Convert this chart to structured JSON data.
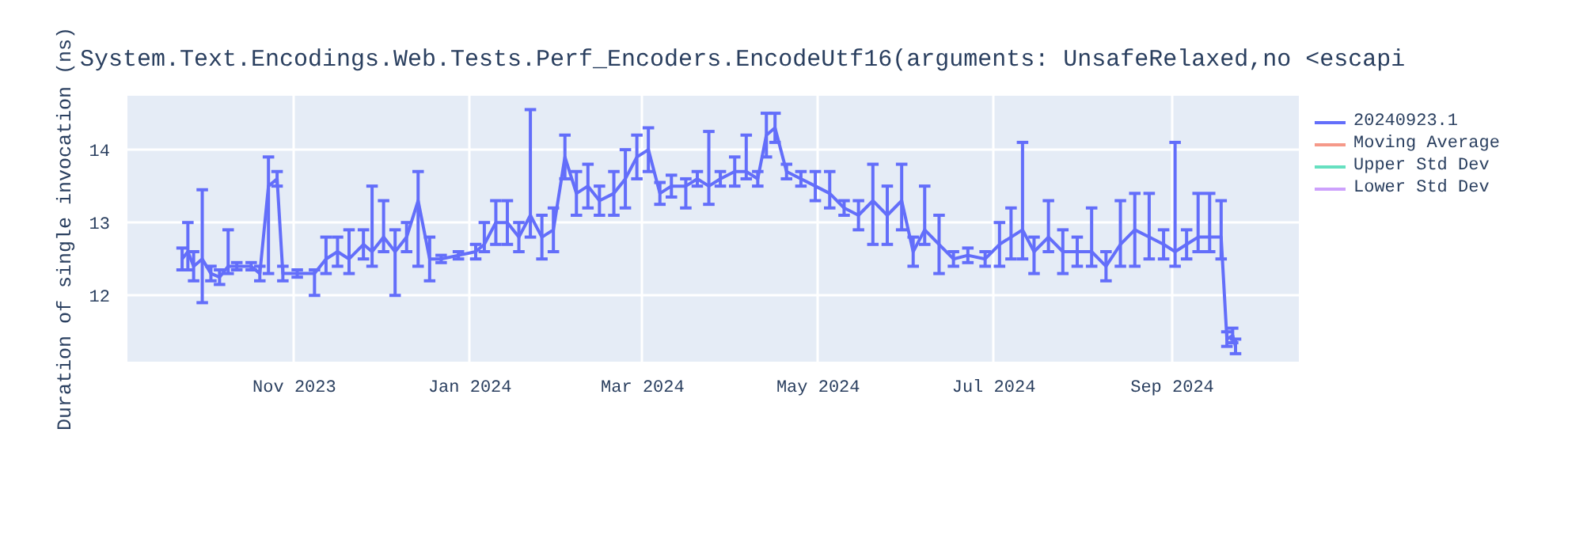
{
  "chart_data": {
    "type": "line",
    "title": "System.Text.Encodings.Web.Tests.Perf_Encoders.EncodeUtf16(arguments: UnsafeRelaxed,no <escapi",
    "ylabel": "Duration of single invocation (ns)",
    "x": [
      "2023-09-23",
      "2023-09-25",
      "2023-09-27",
      "2023-09-30",
      "2023-10-03",
      "2023-10-06",
      "2023-10-09",
      "2023-10-12",
      "2023-10-17",
      "2023-10-20",
      "2023-10-23",
      "2023-10-26",
      "2023-10-28",
      "2023-11-02",
      "2023-11-08",
      "2023-11-12",
      "2023-11-16",
      "2023-11-20",
      "2023-11-25",
      "2023-11-28",
      "2023-12-02",
      "2023-12-06",
      "2023-12-10",
      "2023-12-14",
      "2023-12-18",
      "2023-12-22",
      "2023-12-28",
      "2024-01-03",
      "2024-01-06",
      "2024-01-10",
      "2024-01-14",
      "2024-01-18",
      "2024-01-22",
      "2024-01-26",
      "2024-01-30",
      "2024-02-03",
      "2024-02-07",
      "2024-02-11",
      "2024-02-15",
      "2024-02-20",
      "2024-02-24",
      "2024-02-28",
      "2024-03-03",
      "2024-03-07",
      "2024-03-11",
      "2024-03-16",
      "2024-03-20",
      "2024-03-24",
      "2024-03-28",
      "2024-04-02",
      "2024-04-06",
      "2024-04-10",
      "2024-04-13",
      "2024-04-16",
      "2024-04-20",
      "2024-04-25",
      "2024-04-30",
      "2024-05-05",
      "2024-05-10",
      "2024-05-15",
      "2024-05-20",
      "2024-05-25",
      "2024-05-30",
      "2024-06-03",
      "2024-06-07",
      "2024-06-12",
      "2024-06-17",
      "2024-06-22",
      "2024-06-28",
      "2024-07-03",
      "2024-07-07",
      "2024-07-11",
      "2024-07-15",
      "2024-07-20",
      "2024-07-25",
      "2024-07-30",
      "2024-08-04",
      "2024-08-09",
      "2024-08-14",
      "2024-08-19",
      "2024-08-24",
      "2024-08-29",
      "2024-09-02",
      "2024-09-06",
      "2024-09-10",
      "2024-09-14",
      "2024-09-18",
      "2024-09-20",
      "2024-09-22",
      "2024-09-23"
    ],
    "series": [
      {
        "name": "20240923.1",
        "color": "#636efa",
        "values": [
          12.5,
          12.6,
          12.4,
          12.5,
          12.3,
          12.25,
          12.4,
          12.4,
          12.4,
          12.3,
          13.5,
          13.6,
          12.3,
          12.3,
          12.3,
          12.5,
          12.6,
          12.5,
          12.7,
          12.6,
          12.8,
          12.6,
          12.8,
          13.3,
          12.5,
          12.5,
          12.55,
          12.6,
          12.7,
          13.0,
          13.0,
          12.8,
          13.1,
          12.8,
          12.9,
          13.9,
          13.4,
          13.5,
          13.3,
          13.4,
          13.6,
          13.9,
          14.0,
          13.4,
          13.5,
          13.5,
          13.6,
          13.5,
          13.6,
          13.7,
          13.7,
          13.6,
          14.2,
          14.3,
          13.7,
          13.6,
          13.5,
          13.4,
          13.2,
          13.1,
          13.3,
          13.1,
          13.3,
          12.6,
          12.9,
          12.7,
          12.5,
          12.55,
          12.5,
          12.7,
          12.8,
          12.9,
          12.6,
          12.8,
          12.6,
          12.6,
          12.6,
          12.4,
          12.7,
          12.9,
          12.8,
          12.7,
          12.6,
          12.7,
          12.8,
          12.8,
          12.8,
          11.4,
          11.45,
          11.3
        ],
        "errors": [
          0.15,
          [
            12.35,
            13.0
          ],
          0.2,
          [
            11.9,
            13.45
          ],
          0.1,
          0.1,
          [
            12.3,
            12.9
          ],
          0.05,
          0.05,
          0.1,
          [
            12.3,
            13.9
          ],
          0.1,
          0.1,
          0.05,
          [
            12.0,
            12.35
          ],
          [
            12.3,
            12.8
          ],
          0.2,
          [
            12.3,
            12.9
          ],
          0.2,
          [
            12.4,
            13.5
          ],
          [
            12.6,
            13.3
          ],
          [
            12.0,
            12.9
          ],
          0.2,
          [
            12.4,
            13.7
          ],
          0.3,
          0.05,
          0.05,
          0.1,
          [
            12.6,
            13.0
          ],
          0.3,
          0.3,
          0.2,
          [
            12.8,
            14.55
          ],
          0.3,
          0.3,
          0.3,
          0.3,
          0.3,
          0.2,
          0.3,
          0.4,
          0.3,
          0.3,
          0.15,
          0.15,
          [
            13.2,
            13.6
          ],
          0.1,
          [
            13.25,
            14.25
          ],
          0.1,
          0.2,
          [
            13.6,
            14.2
          ],
          0.1,
          0.3,
          0.2,
          0.1,
          0.1,
          0.2,
          [
            13.2,
            13.7
          ],
          0.1,
          0.2,
          [
            12.7,
            13.8
          ],
          0.4,
          [
            12.9,
            13.8
          ],
          0.2,
          [
            12.7,
            13.5
          ],
          0.4,
          0.1,
          0.1,
          0.1,
          0.3,
          [
            12.5,
            13.2
          ],
          [
            12.5,
            14.1
          ],
          [
            12.3,
            12.8
          ],
          [
            12.6,
            13.3
          ],
          0.3,
          0.2,
          [
            12.4,
            13.2
          ],
          0.2,
          [
            12.4,
            13.3
          ],
          0.5,
          [
            12.5,
            13.4
          ],
          0.2,
          [
            12.4,
            14.1
          ],
          0.2,
          [
            12.6,
            13.4
          ],
          [
            12.6,
            13.4
          ],
          [
            12.5,
            13.3
          ],
          0.1,
          0.1,
          0.1
        ]
      },
      {
        "name": "Moving Average",
        "color": "#ef553b",
        "values": [
          null,
          null,
          null,
          null,
          null,
          null,
          null,
          null,
          null,
          null,
          null,
          null,
          null,
          null,
          null,
          null,
          null,
          null,
          null,
          null,
          null,
          null,
          null,
          null,
          null,
          null,
          null,
          null,
          null,
          null,
          null,
          null,
          null,
          null,
          null,
          null,
          null,
          null,
          null,
          null,
          null,
          null,
          null,
          null,
          null,
          null,
          null,
          null,
          null,
          null,
          null,
          null,
          null,
          null,
          null,
          null,
          null,
          null,
          null,
          null,
          null,
          null,
          null,
          null,
          null,
          null,
          null,
          null,
          null,
          null,
          null,
          null,
          null,
          null,
          null,
          null,
          null,
          null,
          null,
          null,
          null,
          null,
          null,
          null,
          null,
          null,
          null,
          null,
          null,
          null
        ]
      },
      {
        "name": "Upper Std Dev",
        "color": "#00cc96",
        "values": [
          null,
          null,
          null,
          null,
          null,
          null,
          null,
          null,
          null,
          null,
          null,
          null,
          null,
          null,
          null,
          null,
          null,
          null,
          null,
          null,
          null,
          null,
          null,
          null,
          null,
          null,
          null,
          null,
          null,
          null,
          null,
          null,
          null,
          null,
          null,
          null,
          null,
          null,
          null,
          null,
          null,
          null,
          null,
          null,
          null,
          null,
          null,
          null,
          null,
          null,
          null,
          null,
          null,
          null,
          null,
          null,
          null,
          null,
          null,
          null,
          null,
          null,
          null,
          null,
          null,
          null,
          null,
          null,
          null,
          null,
          null,
          null,
          null,
          null,
          null,
          null,
          null,
          null,
          null,
          null,
          null,
          null,
          null,
          null,
          null,
          null,
          null,
          null,
          null,
          null
        ]
      },
      {
        "name": "Lower Std Dev",
        "color": "#ab63fa",
        "values": [
          null,
          null,
          null,
          null,
          null,
          null,
          null,
          null,
          null,
          null,
          null,
          null,
          null,
          null,
          null,
          null,
          null,
          null,
          null,
          null,
          null,
          null,
          null,
          null,
          null,
          null,
          null,
          null,
          null,
          null,
          null,
          null,
          null,
          null,
          null,
          null,
          null,
          null,
          null,
          null,
          null,
          null,
          null,
          null,
          null,
          null,
          null,
          null,
          null,
          null,
          null,
          null,
          null,
          null,
          null,
          null,
          null,
          null,
          null,
          null,
          null,
          null,
          null,
          null,
          null,
          null,
          null,
          null,
          null,
          null,
          null,
          null,
          null,
          null,
          null,
          null,
          null,
          null,
          null,
          null,
          null,
          null,
          null,
          null,
          null,
          null,
          null,
          null,
          null,
          null
        ]
      }
    ],
    "xlim": [
      "2023-09-04",
      "2024-10-15"
    ],
    "xticks": [
      {
        "value": "2023-11-01",
        "label": "Nov 2023"
      },
      {
        "value": "2024-01-01",
        "label": "Jan 2024"
      },
      {
        "value": "2024-03-01",
        "label": "Mar 2024"
      },
      {
        "value": "2024-05-01",
        "label": "May 2024"
      },
      {
        "value": "2024-07-01",
        "label": "Jul 2024"
      },
      {
        "value": "2024-09-01",
        "label": "Sep 2024"
      }
    ],
    "ylim": [
      11.09,
      14.74
    ],
    "yticks": [
      12,
      13,
      14
    ],
    "grid": true,
    "legend": "top right"
  }
}
